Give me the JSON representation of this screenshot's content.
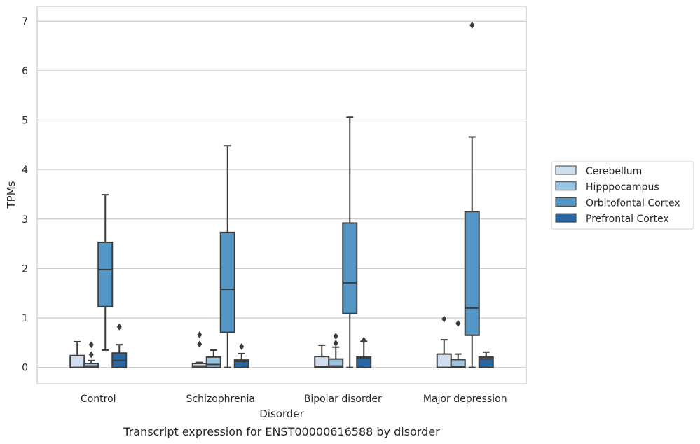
{
  "chart_data": {
    "type": "boxplot",
    "caption": "Transcript expression for ENST00000616588 by disorder",
    "xlabel": "Disorder",
    "ylabel": "TPMs",
    "ylim": [
      -0.33,
      7.3
    ],
    "yticks": [
      0,
      1,
      2,
      3,
      4,
      5,
      6,
      7
    ],
    "grid": "horizontal",
    "legend_position": "right",
    "categories": [
      "Control",
      "Schizophrenia",
      "Bipolar disorder",
      "Major depression"
    ],
    "series": [
      {
        "name": "Cerebellum",
        "color": "#cfdfef",
        "boxes": [
          {
            "whislo": 0,
            "q1": 0,
            "median": 0,
            "q3": 0.24,
            "whishi": 0.52,
            "fliers": []
          },
          {
            "whislo": 0,
            "q1": 0,
            "median": 0.03,
            "q3": 0.08,
            "whishi": 0.1,
            "fliers": [
              0.47,
              0.66
            ]
          },
          {
            "whislo": 0,
            "q1": 0,
            "median": 0.02,
            "q3": 0.22,
            "whishi": 0.45,
            "fliers": []
          },
          {
            "whislo": 0,
            "q1": 0,
            "median": 0,
            "q3": 0.27,
            "whishi": 0.56,
            "fliers": [
              0.98
            ]
          }
        ]
      },
      {
        "name": "Hipppocampus",
        "color": "#9ac5e0",
        "boxes": [
          {
            "whislo": 0,
            "q1": 0,
            "median": 0.03,
            "q3": 0.08,
            "whishi": 0.14,
            "fliers": [
              0.26,
              0.46
            ]
          },
          {
            "whislo": 0,
            "q1": 0,
            "median": 0.06,
            "q3": 0.21,
            "whishi": 0.35,
            "fliers": []
          },
          {
            "whislo": 0,
            "q1": 0,
            "median": 0.03,
            "q3": 0.17,
            "whishi": 0.41,
            "fliers": [
              0.49,
              0.63
            ]
          },
          {
            "whislo": 0,
            "q1": 0,
            "median": 0.02,
            "q3": 0.16,
            "whishi": 0.27,
            "fliers": [
              0.89
            ]
          }
        ]
      },
      {
        "name": "Orbitofontal Cortex",
        "color": "#5496c5",
        "boxes": [
          {
            "whislo": 0.35,
            "q1": 1.23,
            "median": 1.98,
            "q3": 2.53,
            "whishi": 3.49,
            "fliers": []
          },
          {
            "whislo": 0,
            "q1": 0.71,
            "median": 1.58,
            "q3": 2.73,
            "whishi": 4.48,
            "fliers": []
          },
          {
            "whislo": 0,
            "q1": 1.09,
            "median": 1.71,
            "q3": 2.92,
            "whishi": 5.06,
            "fliers": []
          },
          {
            "whislo": 0,
            "q1": 0.65,
            "median": 1.2,
            "q3": 3.15,
            "whishi": 4.66,
            "fliers": [
              6.92
            ]
          }
        ]
      },
      {
        "name": "Prefrontal Cortex",
        "color": "#2a66a3",
        "boxes": [
          {
            "whislo": 0,
            "q1": 0,
            "median": 0.14,
            "q3": 0.29,
            "whishi": 0.46,
            "fliers": [
              0.82
            ]
          },
          {
            "whislo": 0,
            "q1": 0,
            "median": 0.12,
            "q3": 0.15,
            "whishi": 0.28,
            "fliers": [
              0.42
            ]
          },
          {
            "whislo": 0,
            "q1": 0,
            "median": 0.19,
            "q3": 0.21,
            "whishi": 0.53,
            "fliers": [
              0.55
            ]
          },
          {
            "whislo": 0,
            "q1": 0,
            "median": 0.17,
            "q3": 0.21,
            "whishi": 0.31,
            "fliers": []
          }
        ]
      }
    ]
  }
}
